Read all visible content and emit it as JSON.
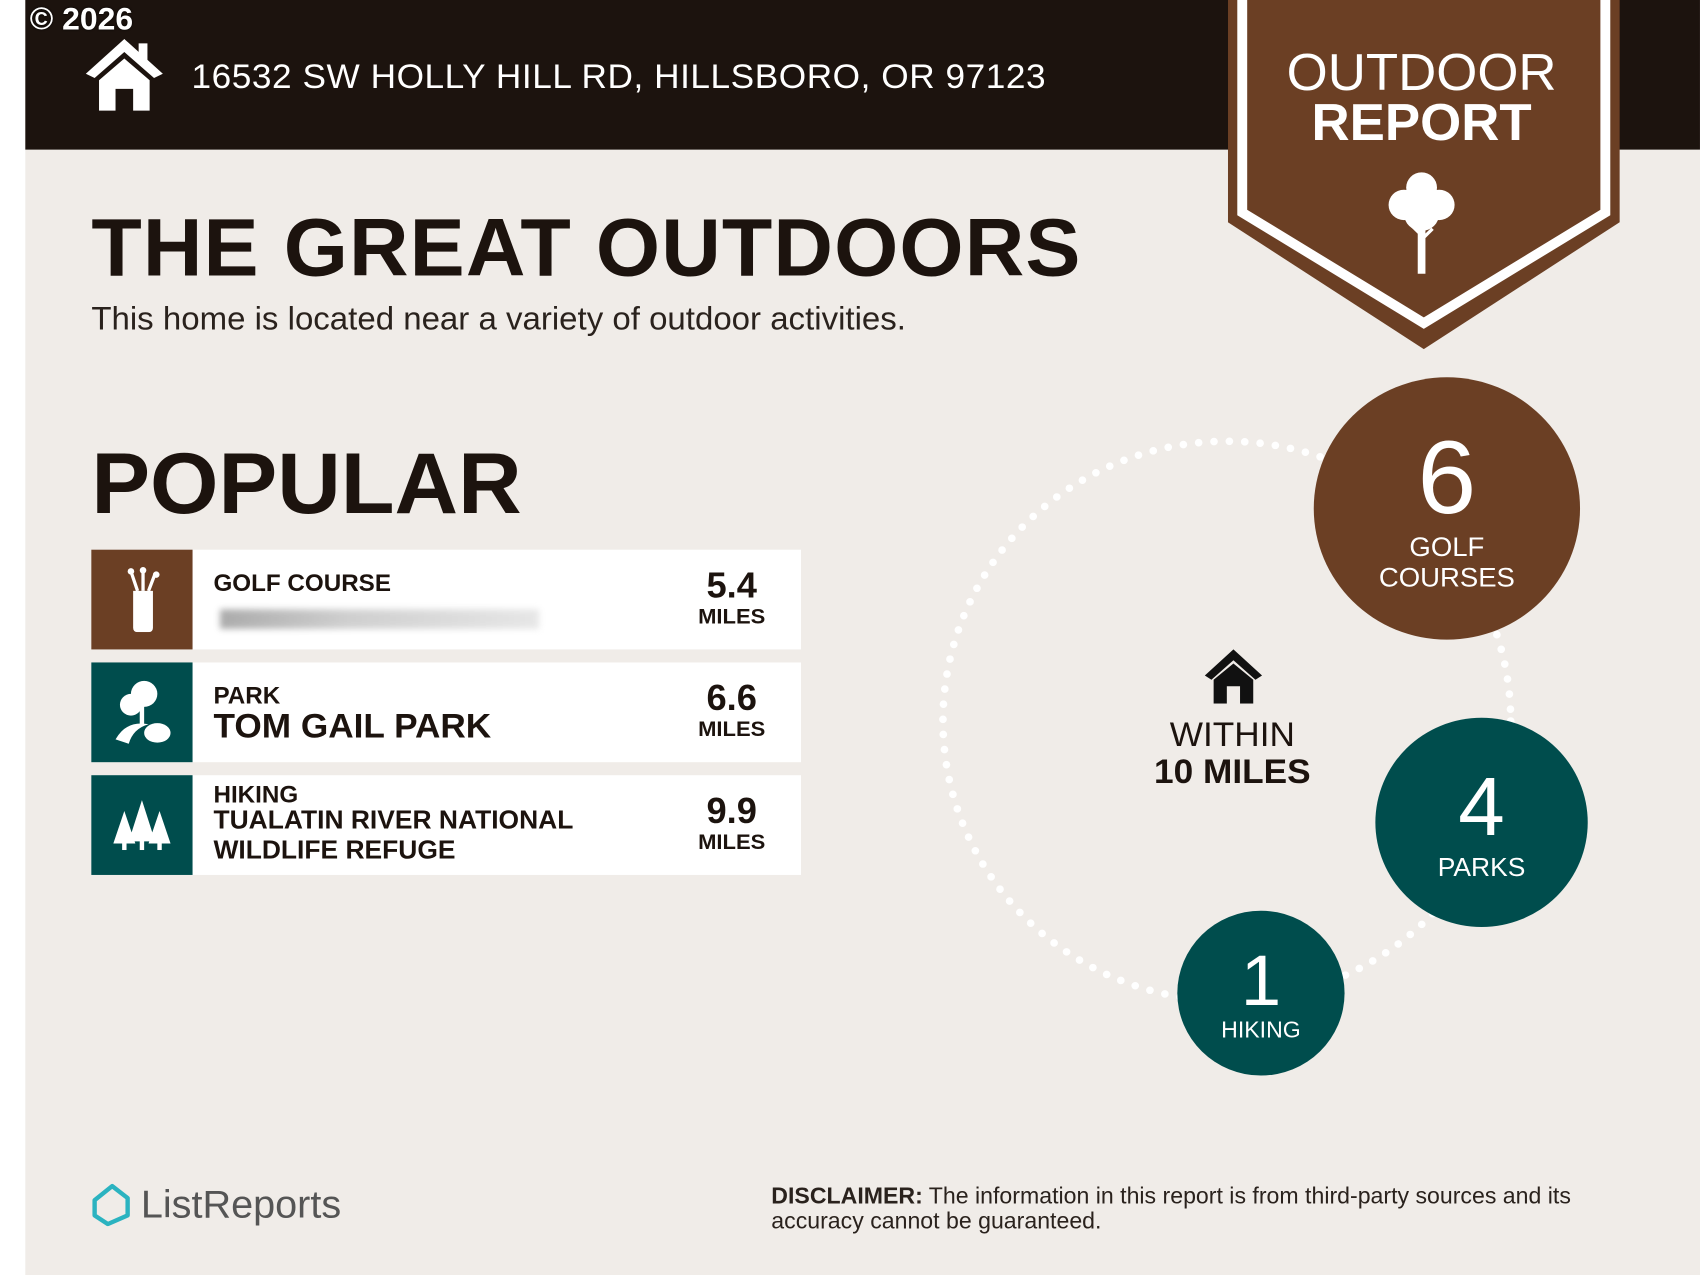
{
  "copyright": "© 2026",
  "header": {
    "address": "16532 SW HOLLY HILL RD, HILLSBORO, OR 97123",
    "icon": "house-icon"
  },
  "badge": {
    "line1": "OUTDOOR",
    "line2": "REPORT",
    "icon": "tree-icon"
  },
  "title": "THE GREAT OUTDOORS",
  "subtitle": "This home is located near a variety of outdoor activities.",
  "popular": {
    "heading": "POPULAR",
    "items": [
      {
        "category": "GOLF COURSE",
        "name": "",
        "distance": "5.4",
        "unit": "MILES",
        "icon": "golf-bag-icon",
        "color": "#6b3f24"
      },
      {
        "category": "PARK",
        "name": "TOM GAIL PARK",
        "distance": "6.6",
        "unit": "MILES",
        "icon": "park-trees-icon",
        "color": "#004d4d"
      },
      {
        "category": "HIKING",
        "name": "TUALATIN RIVER NATIONAL WILDLIFE REFUGE",
        "distance": "9.9",
        "unit": "MILES",
        "icon": "pine-trees-icon",
        "color": "#004d4d"
      }
    ]
  },
  "summary": {
    "within_label": "WITHIN",
    "radius": "10 MILES",
    "counts": [
      {
        "value": "6",
        "label1": "GOLF",
        "label2": "COURSES",
        "color": "#6b3f24"
      },
      {
        "value": "4",
        "label1": "PARKS",
        "color": "#004d4d"
      },
      {
        "value": "1",
        "label1": "HIKING",
        "color": "#004d4d"
      }
    ]
  },
  "footer": {
    "logo": "ListReports",
    "disclaimer_label": "DISCLAIMER:",
    "disclaimer": " The information in this report is from third-party sources and its accuracy cannot be guaranteed."
  }
}
